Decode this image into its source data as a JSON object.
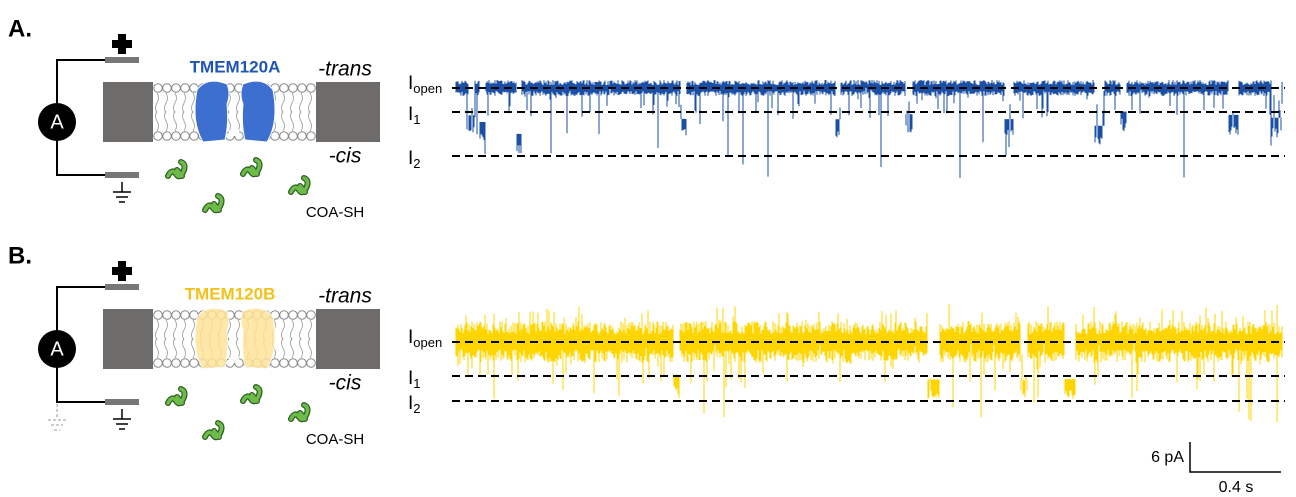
{
  "panels": [
    {
      "label": "A.",
      "protein": "TMEM120A",
      "trans": "-trans",
      "cis": "-cis",
      "ligand": "COA-SH",
      "ammeter": "A",
      "levels": [
        {
          "main": "I",
          "sub": "open"
        },
        {
          "main": "I",
          "sub": "1"
        },
        {
          "main": "I",
          "sub": "2"
        }
      ]
    },
    {
      "label": "B.",
      "protein": "TMEM120B",
      "trans": "-trans",
      "cis": "-cis",
      "ligand": "COA-SH",
      "ammeter": "A",
      "levels": [
        {
          "main": "I",
          "sub": "open"
        },
        {
          "main": "I",
          "sub": "1"
        },
        {
          "main": "I",
          "sub": "2"
        }
      ]
    }
  ],
  "scale_bar": {
    "current": "6 pA",
    "time": "0.4 s"
  }
}
